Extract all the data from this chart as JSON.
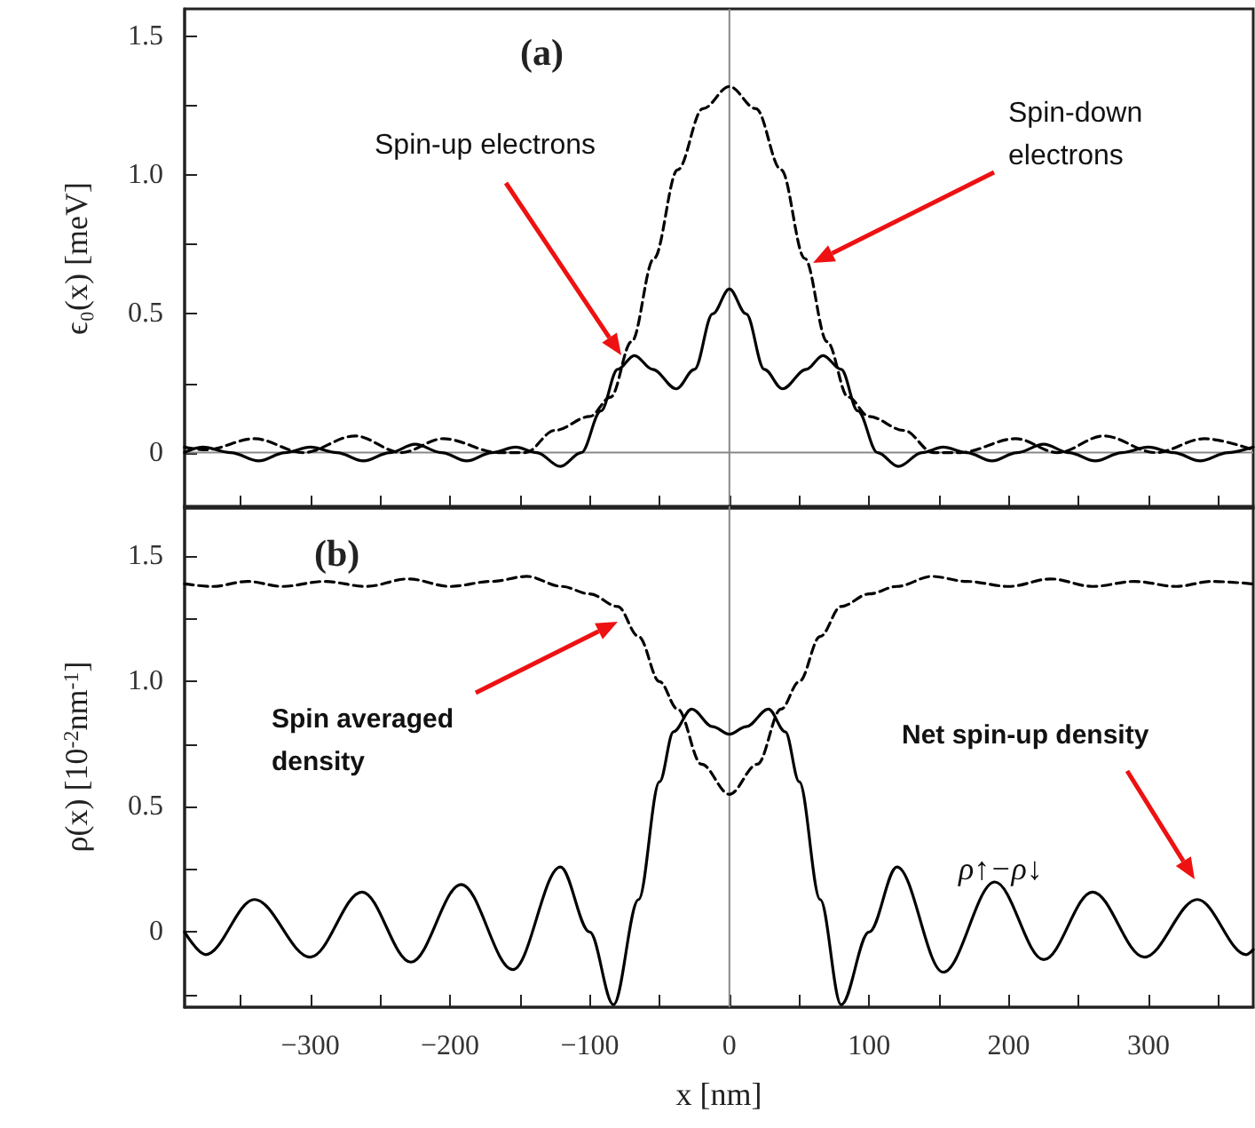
{
  "chart_data": [
    {
      "type": "line",
      "title": "(a)",
      "ylabel": "ϵ₀(x) [meV]",
      "xlim": [
        -390,
        375
      ],
      "ylim": [
        -0.2,
        1.6
      ],
      "xticks": [
        {
          "value": -350,
          "label": null
        },
        {
          "value": -300,
          "label": null
        },
        {
          "value": -250,
          "label": null
        },
        {
          "value": -200,
          "label": null
        },
        {
          "value": -150,
          "label": null
        },
        {
          "value": -100,
          "label": null
        },
        {
          "value": -50,
          "label": null
        },
        {
          "value": 0,
          "label": null
        },
        {
          "value": 50,
          "label": null
        },
        {
          "value": 100,
          "label": null
        },
        {
          "value": 150,
          "label": null
        },
        {
          "value": 200,
          "label": null
        },
        {
          "value": 250,
          "label": null
        },
        {
          "value": 300,
          "label": null
        },
        {
          "value": 350,
          "label": null
        }
      ],
      "yticks": [
        0,
        {
          "value": 0.25,
          "label": null
        },
        0.5,
        {
          "value": 0.75,
          "label": null
        },
        {
          "value": 1,
          "label": "1.0"
        },
        {
          "value": 1.25,
          "label": null
        },
        1.5
      ],
      "tick_labels": "y",
      "marker": "none",
      "series": [
        {
          "color": "#000000",
          "line_style": "solid",
          "x": [
            -390,
            -377,
            -357,
            -337,
            -318,
            -300,
            -281,
            -262,
            -243,
            -225,
            -206,
            -188,
            -170,
            -153,
            -138,
            -121,
            -106,
            -92,
            -80,
            -68,
            -55,
            -38,
            -25,
            -12,
            0,
            12,
            25,
            38,
            55,
            67,
            80,
            92,
            106,
            121,
            138,
            153,
            170,
            188,
            206,
            225,
            243,
            262,
            281,
            300,
            318,
            337,
            357,
            375
          ],
          "values": [
            0.0,
            0.02,
            0.0,
            -0.03,
            0.0,
            0.02,
            0.0,
            -0.03,
            0.0,
            0.03,
            0.0,
            -0.03,
            0.0,
            0.02,
            0.0,
            -0.05,
            0.0,
            0.15,
            0.3,
            0.35,
            0.3,
            0.23,
            0.3,
            0.5,
            0.59,
            0.5,
            0.3,
            0.23,
            0.3,
            0.35,
            0.3,
            0.15,
            0.0,
            -0.05,
            0.0,
            0.02,
            0.0,
            -0.03,
            0.0,
            0.03,
            0.0,
            -0.03,
            0.0,
            0.02,
            0.0,
            -0.03,
            0.0,
            0.02
          ]
        },
        {
          "color": "#000000",
          "line_style": "dashed",
          "x": [
            -390,
            -375,
            -340,
            -305,
            -268,
            -235,
            -205,
            -165,
            -146,
            -125,
            -100,
            -85,
            -70,
            -54,
            -37,
            -19,
            0,
            19,
            37,
            54,
            70,
            85,
            100,
            125,
            146,
            165,
            205,
            235,
            268,
            305,
            340,
            375
          ],
          "values": [
            0.02,
            0.01,
            0.05,
            0.0,
            0.06,
            0.0,
            0.05,
            0.0,
            0.0,
            0.08,
            0.13,
            0.2,
            0.4,
            0.7,
            1.02,
            1.24,
            1.32,
            1.24,
            1.02,
            0.7,
            0.4,
            0.2,
            0.13,
            0.08,
            0.0,
            0.0,
            0.05,
            0.0,
            0.06,
            0.0,
            0.05,
            0.01
          ]
        }
      ],
      "ref_lines": [
        {
          "axis": "x",
          "value": 0,
          "color": "#888888"
        },
        {
          "axis": "y",
          "value": 0,
          "color": "#888888"
        }
      ],
      "annotations": [
        "Spin-up electrons",
        "Spin-down electrons"
      ]
    },
    {
      "type": "line",
      "title": "(b)",
      "xlabel": "x [nm]",
      "ylabel": "ρ(x) [10$^{-2}$nm$^{-1}$]",
      "xlim": [
        -390,
        375
      ],
      "ylim": [
        -0.3,
        1.7
      ],
      "xticks": [
        {
          "value": -350,
          "label": null
        },
        {
          "value": -300,
          "label": "−300"
        },
        {
          "value": -250,
          "label": null
        },
        {
          "value": -200,
          "label": "−200"
        },
        {
          "value": -150,
          "label": null
        },
        {
          "value": -100,
          "label": "−100"
        },
        {
          "value": -50,
          "label": null
        },
        0,
        {
          "value": 50,
          "label": null
        },
        100,
        {
          "value": 150,
          "label": null
        },
        200,
        {
          "value": 250,
          "label": null
        },
        300,
        {
          "value": 350,
          "label": null
        }
      ],
      "yticks": [
        {
          "value": -0.25,
          "label": null
        },
        0,
        {
          "value": 0.25,
          "label": null
        },
        0.5,
        {
          "value": 0.75,
          "label": null
        },
        {
          "value": 1,
          "label": "1.0"
        },
        {
          "value": 1.25,
          "label": null
        },
        1.5
      ],
      "marker": "none",
      "series": [
        {
          "color": "#000000",
          "line_style": "solid",
          "x": [
            -390,
            -375,
            -340,
            -300,
            -263,
            -228,
            -192,
            -155,
            -121,
            -100,
            -83,
            -65,
            -50,
            -40,
            -27,
            -12,
            0,
            12,
            28,
            40,
            50,
            65,
            80,
            100,
            120,
            153,
            190,
            225,
            260,
            297,
            335,
            370,
            375
          ],
          "values": [
            0.0,
            -0.09,
            0.13,
            -0.1,
            0.16,
            -0.12,
            0.19,
            -0.15,
            0.26,
            0.0,
            -0.29,
            0.13,
            0.6,
            0.8,
            0.89,
            0.82,
            0.79,
            0.82,
            0.89,
            0.8,
            0.6,
            0.13,
            -0.29,
            0.0,
            0.26,
            -0.16,
            0.2,
            -0.11,
            0.16,
            -0.1,
            0.13,
            -0.09,
            -0.07
          ]
        },
        {
          "color": "#000000",
          "line_style": "dashed",
          "x": [
            -390,
            -370,
            -345,
            -320,
            -290,
            -260,
            -230,
            -200,
            -170,
            -145,
            -120,
            -100,
            -80,
            -65,
            -50,
            -37,
            -20,
            0,
            20,
            37,
            50,
            65,
            80,
            100,
            120,
            145,
            170,
            200,
            230,
            260,
            290,
            320,
            345,
            375
          ],
          "values": [
            1.39,
            1.38,
            1.4,
            1.38,
            1.4,
            1.38,
            1.41,
            1.38,
            1.4,
            1.42,
            1.38,
            1.35,
            1.3,
            1.18,
            1.0,
            0.89,
            0.67,
            0.55,
            0.67,
            0.89,
            1.0,
            1.18,
            1.3,
            1.35,
            1.38,
            1.42,
            1.4,
            1.38,
            1.41,
            1.38,
            1.4,
            1.38,
            1.4,
            1.39
          ]
        }
      ],
      "ref_lines": [
        {
          "axis": "x",
          "value": 0,
          "color": "#888888"
        }
      ],
      "annotations": [
        "Spin averaged density",
        "Net spin-up density",
        "ρ↑−ρ↓"
      ]
    }
  ]
}
